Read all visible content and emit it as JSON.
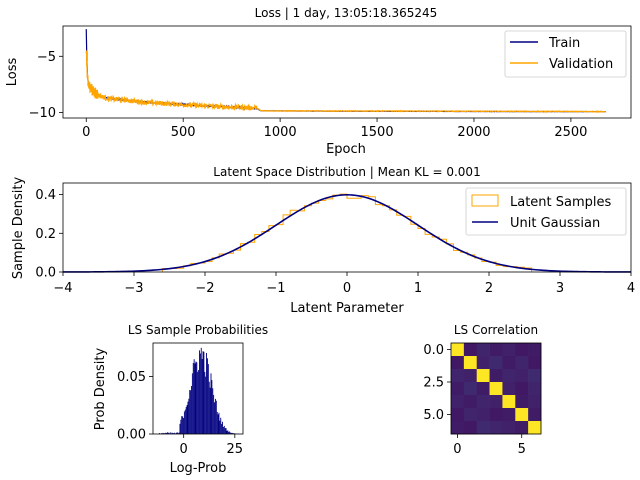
{
  "colors": {
    "train": "#000080",
    "validation": "#ffa500",
    "samples": "#ffa500",
    "gaussian": "#000080",
    "hist": "#000080"
  },
  "chart_data": [
    {
      "type": "line",
      "title": "Loss | 1 day, 13:05:18.365245",
      "xlabel": "Epoch",
      "ylabel": "Loss",
      "xlim": [
        -120,
        2810
      ],
      "ylim": [
        -10.5,
        -2.3
      ],
      "xticks": [
        0,
        500,
        1000,
        1500,
        2000,
        2500
      ],
      "xtick_labels": [
        "0",
        "500",
        "1000",
        "1500",
        "2000",
        "2500"
      ],
      "yticks": [
        -5,
        -10
      ],
      "ytick_labels": [
        "−5",
        "−10"
      ],
      "legend": "upper-right",
      "series": [
        {
          "name": "Train",
          "x": [
            0,
            2,
            5,
            10,
            20,
            40,
            80,
            150,
            300,
            500,
            700,
            880,
            900,
            1000,
            1500,
            2000,
            2500,
            2680
          ],
          "y": [
            -2.6,
            -4.5,
            -6.4,
            -7.4,
            -7.9,
            -8.3,
            -8.6,
            -8.8,
            -9.1,
            -9.3,
            -9.5,
            -9.65,
            -9.85,
            -9.87,
            -9.9,
            -9.92,
            -9.93,
            -9.93
          ]
        },
        {
          "name": "Validation",
          "x": [
            0,
            5,
            10,
            20,
            30,
            40,
            60,
            80,
            120,
            200,
            300,
            400,
            500,
            600,
            700,
            800,
            880,
            900,
            1000,
            1500,
            2000,
            2500,
            2680
          ],
          "y": [
            -4.5,
            -6.5,
            -7.6,
            -7.7,
            -8.0,
            -8.2,
            -8.4,
            -8.6,
            -8.8,
            -8.9,
            -9.1,
            -9.2,
            -9.3,
            -9.4,
            -9.5,
            -9.55,
            -9.6,
            -9.85,
            -9.87,
            -9.88,
            -9.9,
            -9.92,
            -9.93
          ]
        }
      ]
    },
    {
      "type": "histogram",
      "title": "Latent Space Distribution | Mean KL = 0.001",
      "xlabel": "Latent Parameter",
      "ylabel": "Sample Density",
      "xlim": [
        -4,
        4
      ],
      "ylim": [
        0,
        0.46
      ],
      "xticks": [
        -4,
        -3,
        -2,
        -1,
        0,
        1,
        2,
        3,
        4
      ],
      "xtick_labels": [
        "−4",
        "−3",
        "−2",
        "−1",
        "0",
        "1",
        "2",
        "3",
        "4"
      ],
      "yticks": [
        0.0,
        0.2,
        0.4
      ],
      "ytick_labels": [
        "0.0",
        "0.2",
        "0.4"
      ],
      "legend": "upper-right",
      "series": [
        {
          "name": "Latent Samples",
          "kind": "step-histogram",
          "range": [
            -2.6,
            2.6
          ],
          "bins": 52,
          "note_values": "density follows unit normal with sampling noise"
        },
        {
          "name": "Unit Gaussian",
          "kind": "pdf",
          "mean": 0,
          "std": 1
        }
      ]
    },
    {
      "type": "histogram",
      "title": "LS Sample Probabilities",
      "xlabel": "Log-Prob",
      "ylabel": "Prob Density",
      "xlim": [
        -15,
        29
      ],
      "ylim": [
        0,
        0.079
      ],
      "xticks": [
        0,
        25
      ],
      "xtick_labels": [
        "0",
        "25"
      ],
      "yticks": [
        0.0,
        0.05
      ],
      "ytick_labels": [
        "0.00",
        "0.05"
      ],
      "bin_range": [
        -12,
        27
      ],
      "peak": {
        "x": 8.5,
        "density": 0.072
      }
    },
    {
      "type": "heatmap",
      "title": "LS Correlation",
      "size": 7,
      "xticks": [
        0,
        5
      ],
      "xtick_labels": [
        "0",
        "5"
      ],
      "yticks": [
        0.0,
        2.5,
        5.0
      ],
      "ytick_labels": [
        "0.0",
        "2.5",
        "5.0"
      ],
      "colormap": "viridis",
      "matrix": [
        [
          1.0,
          0.05,
          0.08,
          0.06,
          0.07,
          0.05,
          0.06
        ],
        [
          0.05,
          1.0,
          0.07,
          0.09,
          0.06,
          0.08,
          0.05
        ],
        [
          0.08,
          0.07,
          1.0,
          0.06,
          0.08,
          0.07,
          0.09
        ],
        [
          0.06,
          0.09,
          0.06,
          1.0,
          0.07,
          0.05,
          0.08
        ],
        [
          0.07,
          0.06,
          0.08,
          0.07,
          1.0,
          0.06,
          0.07
        ],
        [
          0.05,
          0.08,
          0.07,
          0.05,
          0.06,
          1.0,
          0.06
        ],
        [
          0.06,
          0.05,
          0.09,
          0.08,
          0.07,
          0.06,
          1.0
        ]
      ]
    }
  ]
}
